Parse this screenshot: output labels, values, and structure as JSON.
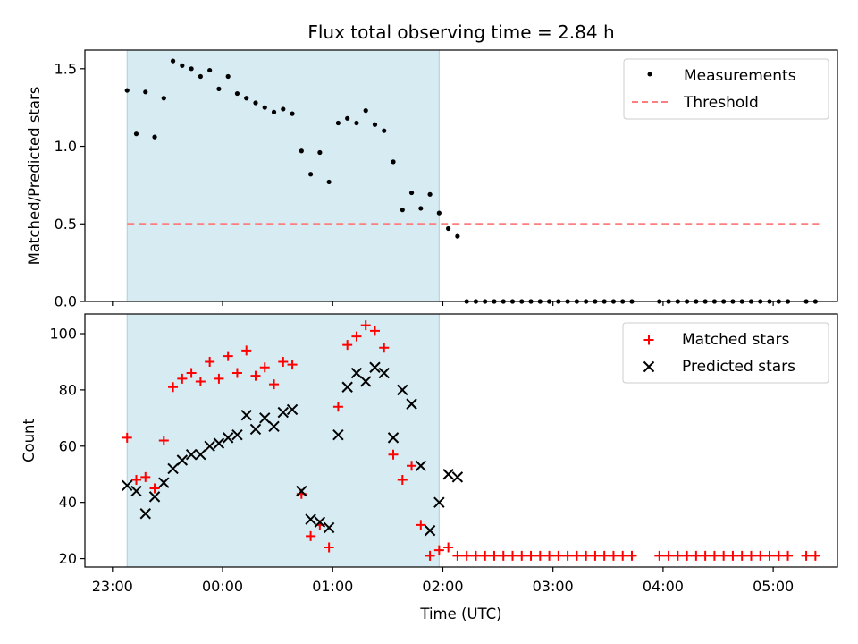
{
  "chart_data": [
    {
      "type": "scatter",
      "title": "Flux total observing time = 2.84 h",
      "xlabel": "",
      "ylabel": "Matched/Predicted stars",
      "ylim": [
        0,
        1.62
      ],
      "yticks": [
        "0.0",
        "0.5",
        "1.0",
        "1.5"
      ],
      "xlim_minutes": [
        -15,
        395
      ],
      "shaded_region_minutes": [
        8,
        178
      ],
      "legend": {
        "placement": "top-right",
        "entries": [
          "Measurements",
          "Threshold"
        ]
      },
      "threshold": {
        "name": "Threshold",
        "value": 0.5,
        "x_range_minutes": [
          8,
          385
        ],
        "color": "#ff7f7f"
      },
      "series": [
        {
          "name": "Measurements",
          "color": "#000000",
          "x_minutes": [
            8,
            13,
            18,
            23,
            28,
            33,
            38,
            43,
            48,
            53,
            58,
            63,
            68,
            73,
            78,
            83,
            88,
            93,
            98,
            103,
            108,
            113,
            118,
            123,
            128,
            133,
            138,
            143,
            148,
            153,
            158,
            163,
            168,
            173,
            178,
            183,
            188,
            193,
            198,
            203,
            208,
            213,
            218,
            223,
            228,
            233,
            238,
            243,
            248,
            253,
            258,
            263,
            268,
            273,
            278,
            283,
            298,
            303,
            308,
            313,
            318,
            323,
            328,
            333,
            338,
            343,
            348,
            353,
            358,
            363,
            368,
            378,
            383
          ],
          "values": [
            1.36,
            1.08,
            1.35,
            1.06,
            1.31,
            1.55,
            1.52,
            1.5,
            1.45,
            1.49,
            1.37,
            1.45,
            1.34,
            1.31,
            1.28,
            1.25,
            1.22,
            1.24,
            1.21,
            0.97,
            0.82,
            0.96,
            0.77,
            1.15,
            1.18,
            1.15,
            1.23,
            1.14,
            1.1,
            0.9,
            0.59,
            0.7,
            0.6,
            0.69,
            0.57,
            0.47,
            0.42,
            0,
            0,
            0,
            0,
            0,
            0,
            0,
            0,
            0,
            0,
            0,
            0,
            0,
            0,
            0,
            0,
            0,
            0,
            0,
            0,
            0,
            0,
            0,
            0,
            0,
            0,
            0,
            0,
            0,
            0,
            0,
            0,
            0,
            0,
            0,
            0
          ]
        }
      ]
    },
    {
      "type": "scatter",
      "title": "",
      "xlabel": "Time (UTC)",
      "ylabel": "Count",
      "ylim": [
        17,
        107
      ],
      "yticks": [
        "20",
        "40",
        "60",
        "80",
        "100"
      ],
      "xticks": [
        "23:00",
        "00:00",
        "01:00",
        "02:00",
        "03:00",
        "04:00",
        "05:00"
      ],
      "xlim_minutes": [
        -15,
        395
      ],
      "shaded_region_minutes": [
        8,
        178
      ],
      "legend": {
        "placement": "top-right",
        "entries": [
          "Matched stars",
          "Predicted stars"
        ]
      },
      "series": [
        {
          "name": "Matched stars",
          "marker": "+",
          "color": "#ff0000",
          "x_minutes": [
            8,
            13,
            18,
            23,
            28,
            33,
            38,
            43,
            48,
            53,
            58,
            63,
            68,
            73,
            78,
            83,
            88,
            93,
            98,
            103,
            108,
            113,
            118,
            123,
            128,
            133,
            138,
            143,
            148,
            153,
            158,
            163,
            168,
            173,
            178,
            183,
            188,
            193,
            198,
            203,
            208,
            213,
            218,
            223,
            228,
            233,
            238,
            243,
            248,
            253,
            258,
            263,
            268,
            273,
            278,
            283,
            298,
            303,
            308,
            313,
            318,
            323,
            328,
            333,
            338,
            343,
            348,
            353,
            358,
            363,
            368,
            378,
            383
          ],
          "values": [
            63,
            48,
            49,
            45,
            62,
            81,
            84,
            86,
            83,
            90,
            84,
            92,
            86,
            94,
            85,
            88,
            82,
            90,
            89,
            43,
            28,
            32,
            24,
            74,
            96,
            99,
            103,
            101,
            95,
            57,
            48,
            53,
            32,
            21,
            23,
            24,
            21,
            21,
            21,
            21,
            21,
            21,
            21,
            21,
            21,
            21,
            21,
            21,
            21,
            21,
            21,
            21,
            21,
            21,
            21,
            21,
            21,
            21,
            21,
            21,
            21,
            21,
            21,
            21,
            21,
            21,
            21,
            21,
            21,
            21,
            21,
            21,
            21
          ]
        },
        {
          "name": "Predicted stars",
          "marker": "x",
          "color": "#000000",
          "x_minutes": [
            8,
            13,
            18,
            23,
            28,
            33,
            38,
            43,
            48,
            53,
            58,
            63,
            68,
            73,
            78,
            83,
            88,
            93,
            98,
            103,
            108,
            113,
            118,
            123,
            128,
            133,
            138,
            143,
            148,
            153,
            158,
            163,
            168,
            173,
            178,
            183,
            188
          ],
          "values": [
            46,
            44,
            36,
            42,
            47,
            52,
            55,
            57,
            57,
            60,
            61,
            63,
            64,
            71,
            66,
            70,
            67,
            72,
            73,
            44,
            34,
            33,
            31,
            64,
            81,
            86,
            83,
            88,
            86,
            63,
            80,
            75,
            53,
            30,
            40,
            50,
            49
          ]
        }
      ]
    }
  ]
}
